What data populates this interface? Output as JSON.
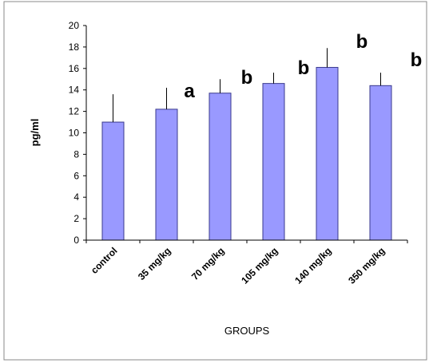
{
  "chart_data": {
    "type": "bar",
    "title": "",
    "xlabel": "GROUPS",
    "ylabel": "pg/ml",
    "ylim": [
      0,
      20
    ],
    "yticks": [
      "0",
      "2",
      "4",
      "6",
      "8",
      "10",
      "12",
      "14",
      "16",
      "18",
      "20"
    ],
    "grid": false,
    "legend": "none",
    "categories": [
      "control",
      "35 mg/kg",
      "70 mg/kg",
      "105 mg/kg",
      "140 mg/kg",
      "350 mg/kg"
    ],
    "series": [
      {
        "values": [
          11.0,
          12.2,
          13.7,
          14.6,
          16.1,
          14.4
        ],
        "error_upper": [
          2.6,
          2.0,
          1.3,
          1.0,
          1.8,
          1.2
        ]
      }
    ],
    "annotations": [
      "a",
      "b",
      "b",
      "b",
      "b"
    ],
    "colors": {
      "bar": "#9999ff",
      "bar_edge": "#3a3a8c",
      "axis": "#000000",
      "error_bar": "#000000"
    }
  }
}
